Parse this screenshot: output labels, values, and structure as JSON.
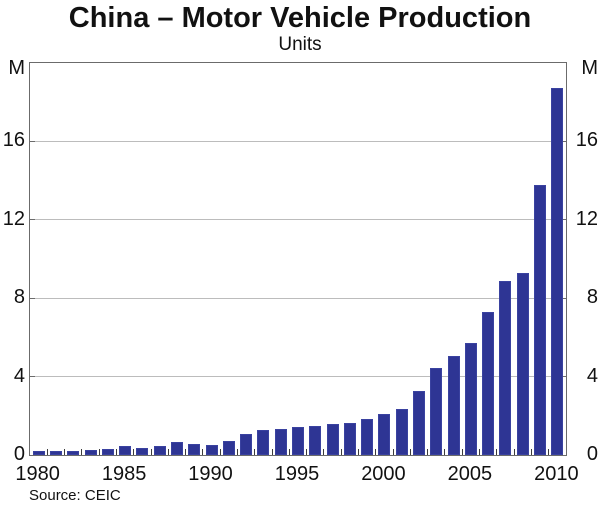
{
  "header": {
    "title": "China – Motor Vehicle Production",
    "subtitle": "Units"
  },
  "footer": {
    "source": "Source: CEIC"
  },
  "chart_data": {
    "type": "bar",
    "title": "China – Motor Vehicle Production",
    "subtitle": "Units",
    "x": [
      1980,
      1981,
      1982,
      1983,
      1984,
      1985,
      1986,
      1987,
      1988,
      1989,
      1990,
      1991,
      1992,
      1993,
      1994,
      1995,
      1996,
      1997,
      1998,
      1999,
      2000,
      2001,
      2002,
      2003,
      2004,
      2005,
      2006,
      2007,
      2008,
      2009,
      2010
    ],
    "values": [
      0.22,
      0.18,
      0.2,
      0.24,
      0.32,
      0.44,
      0.37,
      0.47,
      0.65,
      0.58,
      0.51,
      0.71,
      1.06,
      1.3,
      1.35,
      1.45,
      1.47,
      1.58,
      1.63,
      1.83,
      2.07,
      2.33,
      3.25,
      4.44,
      5.07,
      5.71,
      7.28,
      8.88,
      9.3,
      13.79,
      18.7
    ],
    "unit_label_left": "M",
    "unit_label_right": "M",
    "yticks": [
      0,
      4,
      8,
      12,
      16
    ],
    "ylim": [
      0,
      20
    ],
    "xtick_labels": [
      "1980",
      "1985",
      "1990",
      "1995",
      "2000",
      "2005",
      "2010"
    ],
    "grid": true,
    "legend": "none",
    "bar_color": "#2e3594",
    "source": "Source: CEIC"
  }
}
